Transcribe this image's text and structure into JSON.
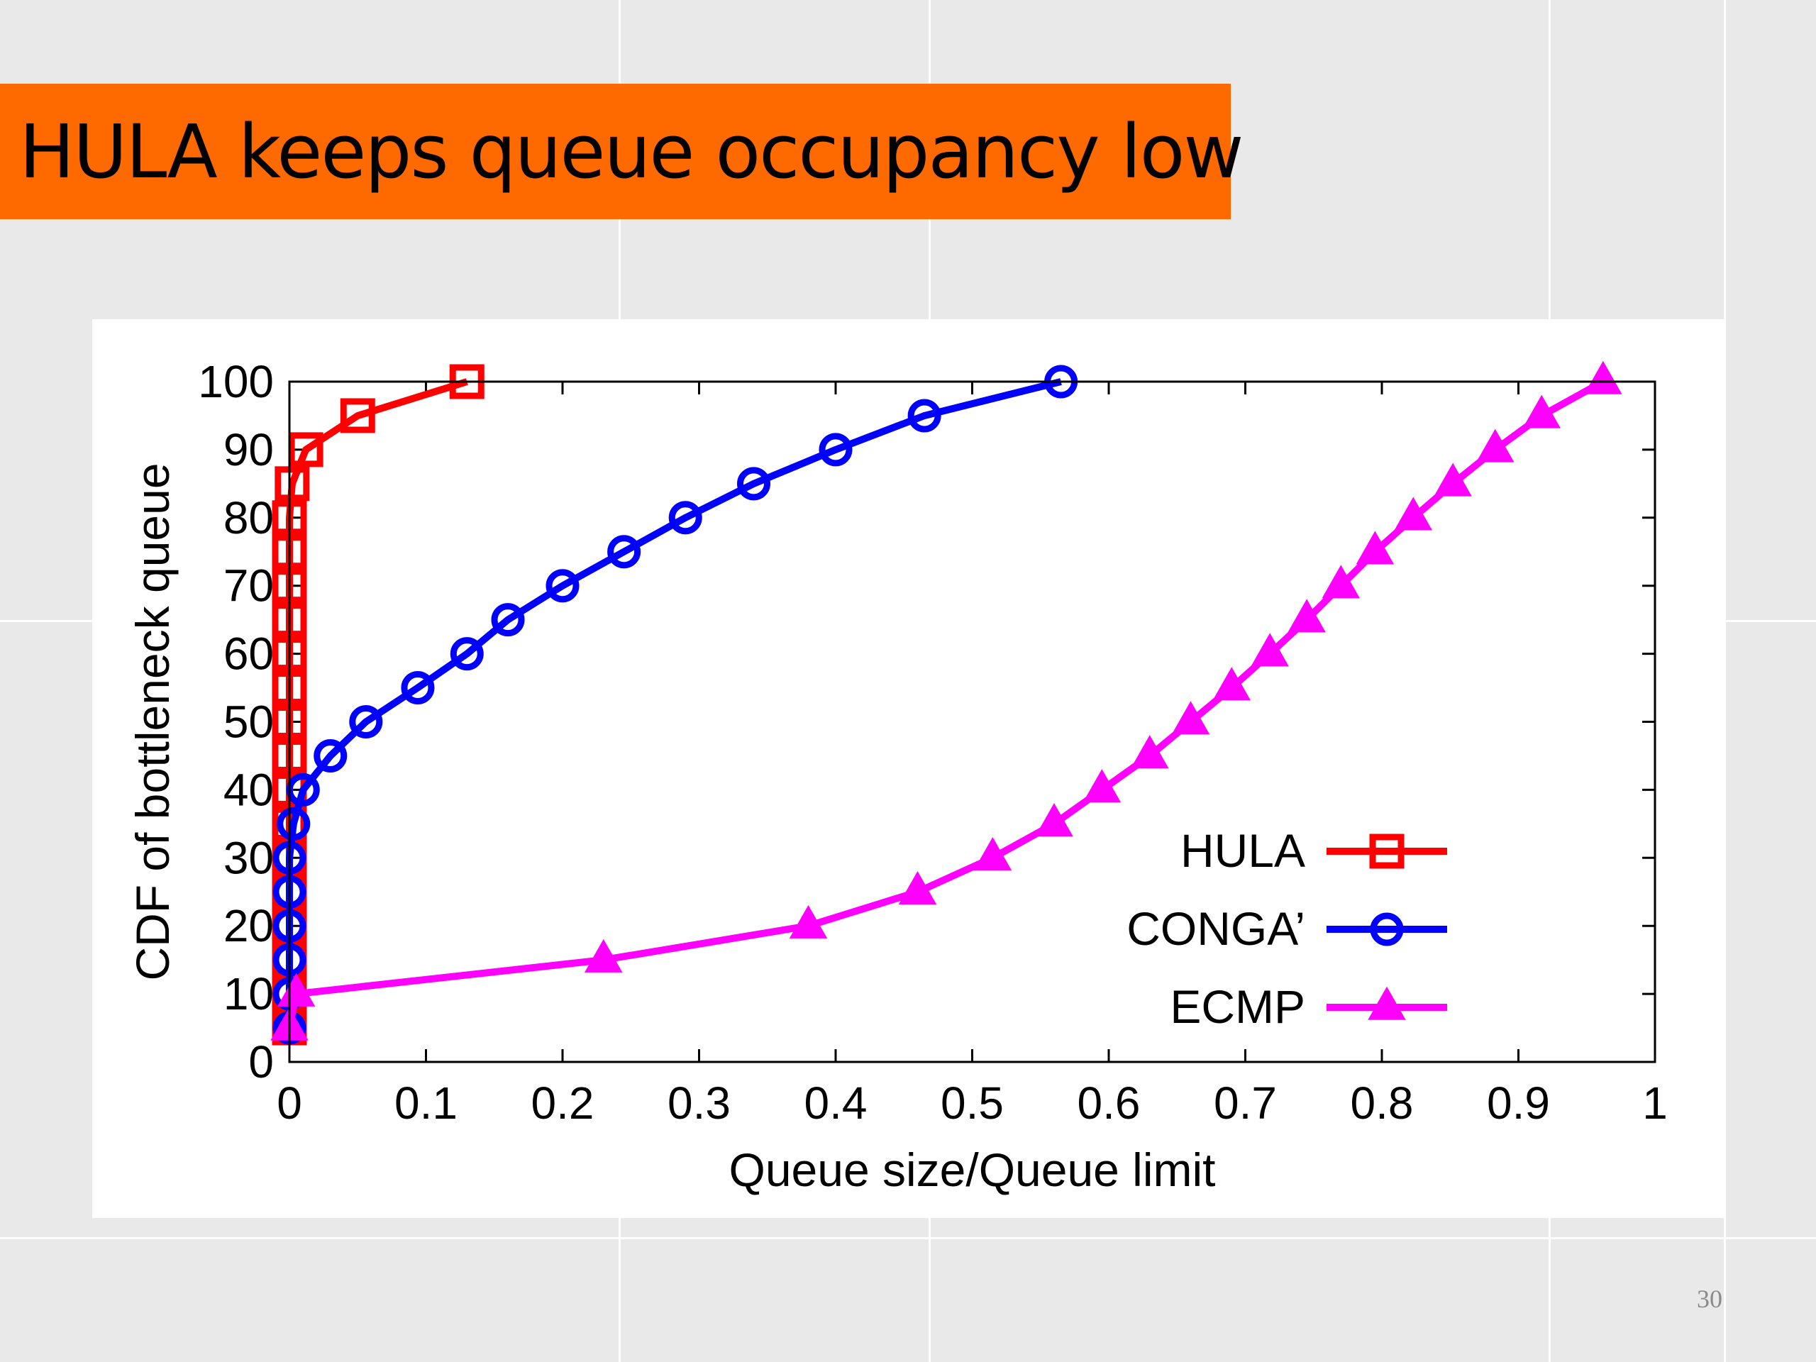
{
  "slide": {
    "title": "HULA keeps queue occupancy low",
    "page_number": "30"
  },
  "chart_data": {
    "type": "line",
    "title": "",
    "xlabel": "Queue size/Queue limit",
    "ylabel": "CDF of bottleneck queue",
    "xlim": [
      0,
      1
    ],
    "ylim": [
      0,
      100
    ],
    "x_ticks": [
      "0",
      "0.1",
      "0.2",
      "0.3",
      "0.4",
      "0.5",
      "0.6",
      "0.7",
      "0.8",
      "0.9",
      "1"
    ],
    "y_ticks": [
      "0",
      "10",
      "20",
      "30",
      "40",
      "50",
      "60",
      "70",
      "80",
      "90",
      "100"
    ],
    "grid": false,
    "legend_position": "bottom-right",
    "series": [
      {
        "name": "HULA",
        "color": "#ff0000",
        "marker": "square",
        "points": [
          [
            0,
            5
          ],
          [
            0,
            10
          ],
          [
            0,
            15
          ],
          [
            0,
            20
          ],
          [
            0,
            25
          ],
          [
            0,
            30
          ],
          [
            0,
            35
          ],
          [
            0,
            40
          ],
          [
            0,
            45
          ],
          [
            0,
            50
          ],
          [
            0,
            55
          ],
          [
            0,
            60
          ],
          [
            0,
            65
          ],
          [
            0,
            70
          ],
          [
            0,
            75
          ],
          [
            0,
            80
          ],
          [
            0.002,
            85
          ],
          [
            0.012,
            90
          ],
          [
            0.05,
            95
          ],
          [
            0.13,
            100
          ]
        ]
      },
      {
        "name": "CONGA’",
        "color": "#0000ff",
        "marker": "circle",
        "points": [
          [
            0,
            5
          ],
          [
            0,
            10
          ],
          [
            0,
            15
          ],
          [
            0,
            20
          ],
          [
            0,
            25
          ],
          [
            0,
            30
          ],
          [
            0.003,
            35
          ],
          [
            0.01,
            40
          ],
          [
            0.03,
            45
          ],
          [
            0.056,
            50
          ],
          [
            0.094,
            55
          ],
          [
            0.13,
            60
          ],
          [
            0.16,
            65
          ],
          [
            0.2,
            70
          ],
          [
            0.245,
            75
          ],
          [
            0.29,
            80
          ],
          [
            0.34,
            85
          ],
          [
            0.4,
            90
          ],
          [
            0.465,
            95
          ],
          [
            0.565,
            100
          ]
        ]
      },
      {
        "name": "ECMP",
        "color": "#ff00ff",
        "marker": "triangle",
        "points": [
          [
            0,
            5
          ],
          [
            0.005,
            10
          ],
          [
            0.23,
            15
          ],
          [
            0.38,
            20
          ],
          [
            0.46,
            25
          ],
          [
            0.515,
            30
          ],
          [
            0.56,
            35
          ],
          [
            0.595,
            40
          ],
          [
            0.63,
            45
          ],
          [
            0.66,
            50
          ],
          [
            0.69,
            55
          ],
          [
            0.718,
            60
          ],
          [
            0.745,
            65
          ],
          [
            0.77,
            70
          ],
          [
            0.795,
            75
          ],
          [
            0.823,
            80
          ],
          [
            0.852,
            85
          ],
          [
            0.883,
            90
          ],
          [
            0.917,
            95
          ],
          [
            0.962,
            100
          ]
        ]
      }
    ]
  }
}
